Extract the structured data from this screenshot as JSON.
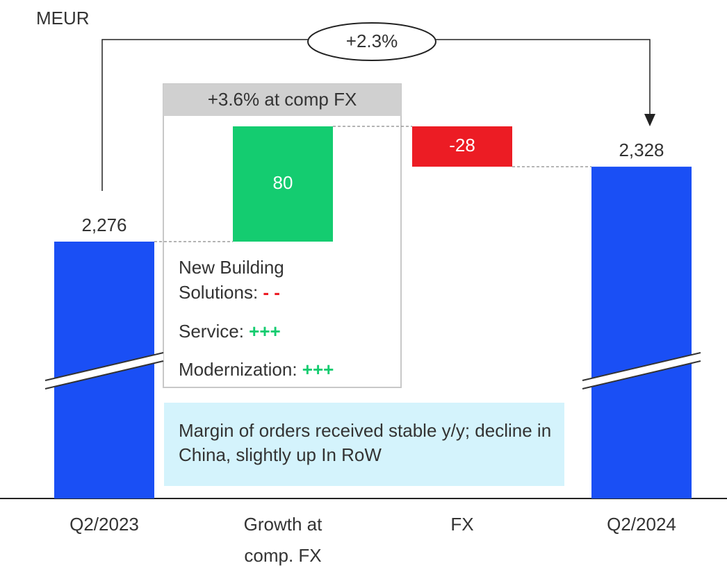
{
  "chart_data": {
    "type": "waterfall",
    "unit_label": "MEUR",
    "categories": [
      "Q2/2023",
      "Growth at comp. FX",
      "FX",
      "Q2/2024"
    ],
    "values": [
      2276,
      80,
      -28,
      2328
    ],
    "value_labels": [
      "2,276",
      "80",
      "-28",
      "2,328"
    ],
    "measure": [
      "absolute",
      "relative",
      "relative",
      "total"
    ],
    "colors": {
      "total": "#1a4ff5",
      "increase": "#14cc70",
      "decrease": "#ec1c24"
    },
    "change_annotation": "+2.3%",
    "growth_box": {
      "title": "+3.6% at comp FX",
      "items": [
        {
          "label": "New Building Solutions:",
          "sign": "- -",
          "color": "#ec1c24"
        },
        {
          "label": "Service:",
          "sign": "+++",
          "color": "#14cc70"
        },
        {
          "label": "Modernization:",
          "sign": "+++",
          "color": "#14cc70"
        }
      ]
    },
    "note": "Margin of orders received stable y/y; decline in China, slightly up In RoW"
  }
}
